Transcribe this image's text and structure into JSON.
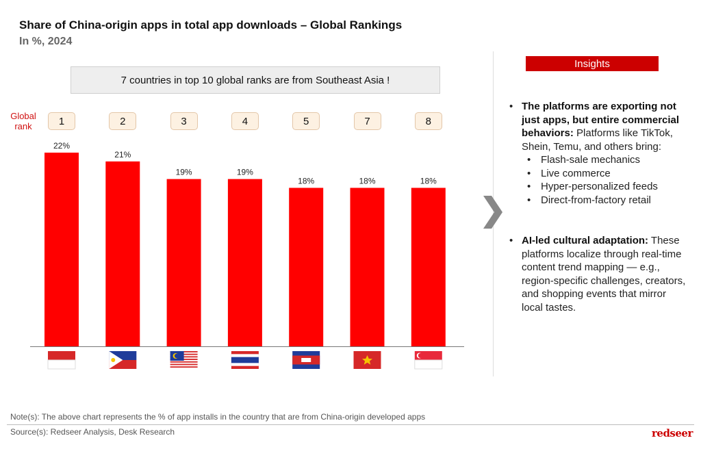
{
  "chart_data": {
    "type": "bar",
    "title": "Share of China-origin apps in total app downloads – Global Rankings",
    "subtitle": "In %, 2024",
    "categories": [
      "indonesia-flag",
      "philippines-flag",
      "malaysia-flag",
      "thailand-flag",
      "cambodia-flag",
      "vietnam-flag",
      "singapore-flag"
    ],
    "global_rank": [
      "1",
      "2",
      "3",
      "4",
      "5",
      "7",
      "8"
    ],
    "values": [
      22,
      21,
      19,
      19,
      18,
      18,
      18
    ],
    "data_labels": [
      "22%",
      "21%",
      "19%",
      "19%",
      "18%",
      "18%",
      "18%"
    ],
    "bar_color": "#ff0000",
    "ylim": [
      0,
      22
    ],
    "grid": false
  },
  "rank_label": "Global rank",
  "callout": "7 countries in top 10 global ranks are from Southeast Asia !",
  "insights": {
    "header": "Insights",
    "bullet1_bold": "The platforms are exporting not just apps, but entire commercial behaviors:",
    "bullet1_text": " Platforms like TikTok, Shein, Temu, and others bring:",
    "sub_bullets": [
      "Flash-sale mechanics",
      "Live commerce",
      "Hyper-personalized feeds",
      "Direct-from-factory retail"
    ],
    "bullet2_bold": "AI-led cultural adaptation:",
    "bullet2_text": " These platforms localize through real-time content trend mapping — e.g., region-specific challenges, creators, and shopping events that mirror local tastes."
  },
  "footer": {
    "note": "Note(s): The above chart represents the % of app installs in the country that are from China-origin developed apps",
    "source": "Source(s): Redseer Analysis, Desk Research",
    "logo": "redseer"
  },
  "colors": {
    "accent": "#cc0000",
    "bar": "#ff0000"
  }
}
